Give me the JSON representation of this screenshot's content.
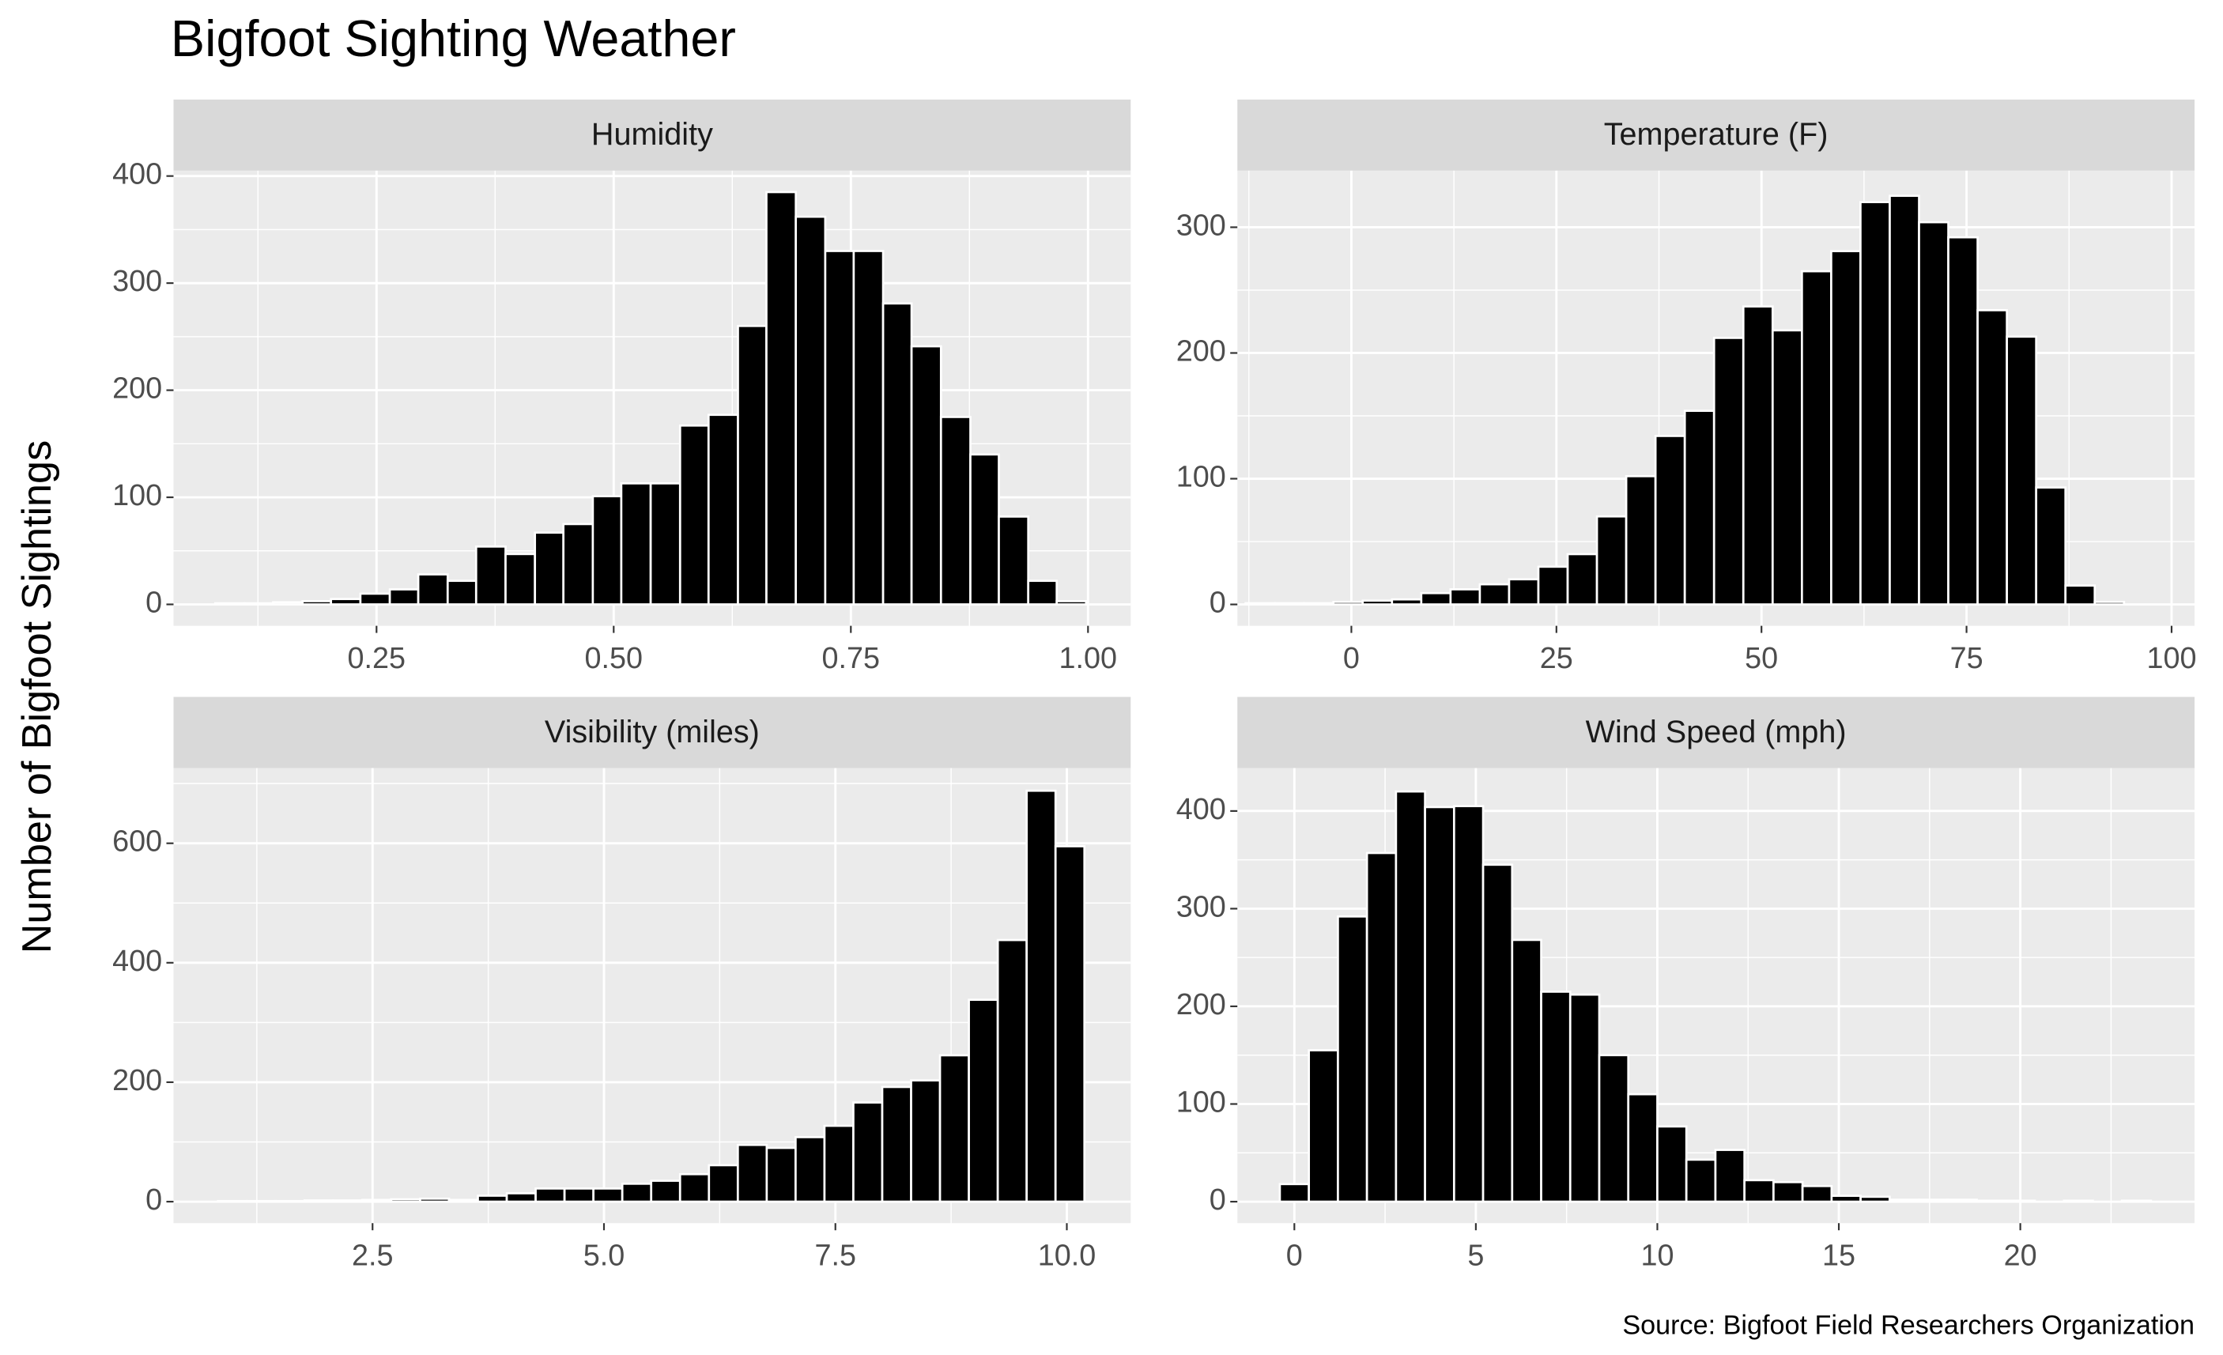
{
  "title": "Bigfoot Sighting Weather",
  "y_label": "Number of Bigfoot Sightings",
  "caption": "Source: Bigfoot Field Researchers Organization",
  "chart_data": [
    {
      "type": "histogram",
      "title": "Humidity",
      "bins": [
        0.08,
        0.111,
        0.141,
        0.172,
        0.202,
        0.233,
        0.264,
        0.294,
        0.325,
        0.355,
        0.386,
        0.417,
        0.447,
        0.478,
        0.508,
        0.539,
        0.57,
        0.6,
        0.631,
        0.661,
        0.692,
        0.723,
        0.753,
        0.784,
        0.814,
        0.845,
        0.876,
        0.906,
        0.937,
        0.967,
        0.998
      ],
      "counts": [
        1,
        1,
        2,
        3,
        5,
        10,
        14,
        28,
        22,
        54,
        47,
        67,
        75,
        101,
        113,
        113,
        167,
        177,
        260,
        385,
        362,
        330,
        330,
        281,
        241,
        175,
        140,
        82,
        22,
        3
      ],
      "color": "#000000",
      "xlim": [
        0.036,
        1.045
      ],
      "xticks": [
        0.25,
        {
          "value": 0.5,
          "label": "0.50"
        },
        0.75,
        {
          "value": 1,
          "label": "1.00"
        }
      ],
      "ylim": [
        -20,
        405
      ],
      "yticks": [
        0,
        100,
        200,
        300,
        400
      ],
      "grid": true
    },
    {
      "type": "histogram",
      "title": "Temperature (F)",
      "bins": [
        -12.9,
        -9.33,
        -5.76,
        -2.19,
        1.38,
        4.95,
        8.52,
        12.09,
        15.66,
        19.23,
        22.8,
        26.37,
        29.94,
        33.51,
        37.08,
        40.65,
        44.22,
        47.79,
        51.36,
        54.93,
        58.5,
        62.07,
        65.64,
        69.21,
        72.78,
        76.35,
        79.92,
        83.49,
        87.06,
        90.63,
        94.2
      ],
      "counts": [
        1,
        1,
        1,
        2,
        3,
        4,
        9,
        12,
        16,
        20,
        30,
        40,
        70,
        102,
        134,
        154,
        212,
        237,
        218,
        265,
        281,
        320,
        325,
        304,
        292,
        234,
        213,
        93,
        15,
        2
      ],
      "color": "#000000",
      "xlim": [
        -13.9,
        102.8
      ],
      "xticks": [
        0,
        25,
        50,
        75,
        100
      ],
      "ylim": [
        -17,
        345
      ],
      "yticks": [
        0,
        100,
        200,
        300
      ],
      "grid": true
    },
    {
      "type": "histogram",
      "title": "Visibility (miles)",
      "bins": [
        0.83,
        1.142,
        1.454,
        1.766,
        2.078,
        2.39,
        2.702,
        3.014,
        3.326,
        3.638,
        3.95,
        4.262,
        4.574,
        4.886,
        5.198,
        5.51,
        5.822,
        6.134,
        6.446,
        6.758,
        7.07,
        7.382,
        7.694,
        8.006,
        8.318,
        8.63,
        8.942,
        9.254,
        9.566,
        9.878,
        10.19
      ],
      "counts": [
        1,
        1,
        1,
        2,
        2,
        3,
        4,
        5,
        3,
        10,
        14,
        22,
        22,
        22,
        30,
        35,
        46,
        61,
        95,
        90,
        108,
        127,
        166,
        192,
        203,
        245,
        338,
        438,
        688,
        595
      ],
      "color": "#000000",
      "xlim": [
        0.35,
        10.69
      ],
      "xticks": [
        2.5,
        {
          "value": 5,
          "label": "5.0"
        },
        7.5,
        {
          "value": 10,
          "label": "10.0"
        }
      ],
      "ylim": [
        -36,
        726
      ],
      "yticks": [
        0,
        200,
        400,
        600
      ],
      "grid": true
    },
    {
      "type": "histogram",
      "title": "Wind Speed (mph)",
      "bins": [
        -0.4,
        0.4,
        1.2,
        2.0,
        2.8,
        3.6,
        4.4,
        5.2,
        6.0,
        6.8,
        7.6,
        8.4,
        9.2,
        10.0,
        10.8,
        11.6,
        12.4,
        13.2,
        14.0,
        14.8,
        15.6,
        16.4,
        17.2,
        18.0,
        18.8,
        19.6,
        20.4,
        21.2,
        22.0,
        22.8,
        23.6
      ],
      "counts": [
        18,
        155,
        292,
        357,
        420,
        404,
        405,
        345,
        268,
        215,
        212,
        150,
        110,
        77,
        43,
        53,
        22,
        20,
        16,
        6,
        5,
        2,
        2,
        2,
        1,
        1,
        0,
        1,
        0,
        1
      ],
      "color": "#000000",
      "xlim": [
        -1.57,
        24.8
      ],
      "xticks": [
        0,
        5,
        10,
        15,
        20
      ],
      "ylim": [
        -22,
        444
      ],
      "yticks": [
        0,
        100,
        200,
        300,
        400
      ],
      "grid": true
    }
  ]
}
